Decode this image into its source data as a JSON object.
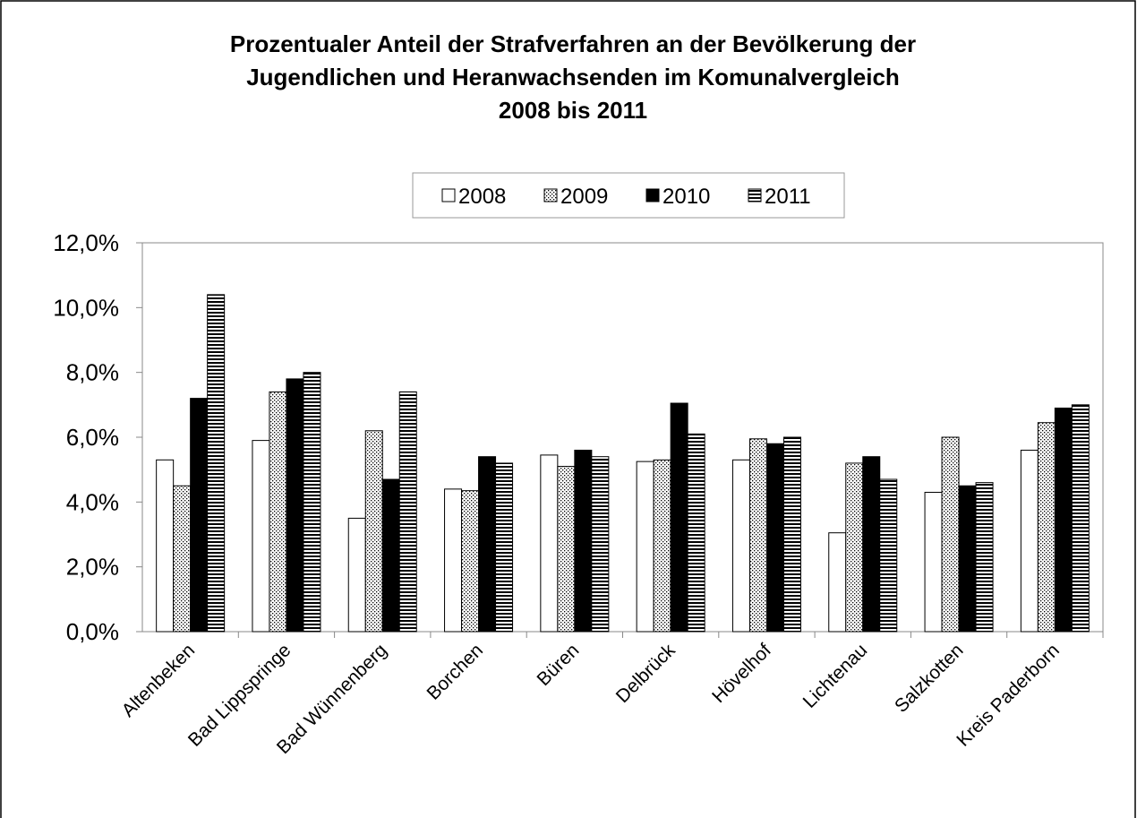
{
  "chart_data": {
    "type": "bar",
    "title": [
      "Prozentualer Anteil der Strafverfahren an der Bevölkerung der",
      "Jugendlichen und Heranwachsenden im Komunalvergleich",
      "2008 bis 2011"
    ],
    "categories": [
      "Altenbeken",
      "Bad Lippspringe",
      "Bad Wünnenberg",
      "Borchen",
      "Büren",
      "Delbrück",
      "Hövelhof",
      "Lichtenau",
      "Salzkotten",
      "Kreis Paderborn"
    ],
    "series": [
      {
        "name": "2008",
        "color": "#ffffff",
        "pattern": "solid",
        "values": [
          5.3,
          5.9,
          3.5,
          4.4,
          5.45,
          5.25,
          5.3,
          3.05,
          4.3,
          5.6
        ]
      },
      {
        "name": "2009",
        "color": "#ffffff",
        "pattern": "dots",
        "values": [
          4.5,
          7.4,
          6.2,
          4.35,
          5.1,
          5.3,
          5.95,
          5.2,
          6.0,
          6.45
        ]
      },
      {
        "name": "2010",
        "color": "#000000",
        "pattern": "solid",
        "values": [
          7.2,
          7.8,
          4.7,
          5.4,
          5.6,
          7.05,
          5.8,
          5.4,
          4.5,
          6.9
        ]
      },
      {
        "name": "2011",
        "color": "#ffffff",
        "pattern": "stripes",
        "values": [
          10.4,
          8.0,
          7.4,
          5.2,
          5.4,
          6.1,
          6.0,
          4.7,
          4.6,
          7.0
        ]
      }
    ],
    "ylim": [
      0,
      12
    ],
    "yticks": [
      {
        "value": 0,
        "label": "0,0%"
      },
      {
        "value": 2,
        "label": "2,0%"
      },
      {
        "value": 4,
        "label": "4,0%"
      },
      {
        "value": 6,
        "label": "6,0%"
      },
      {
        "value": 8,
        "label": "8,0%"
      },
      {
        "value": 10,
        "label": "10,0%"
      },
      {
        "value": 12,
        "label": "12,0%"
      }
    ],
    "legend": "top"
  }
}
